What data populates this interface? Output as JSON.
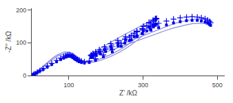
{
  "chart_data": {
    "type": "line",
    "xlabel": "Z’ /kΩ",
    "ylabel": "-Z’’ /kΩ",
    "xlim": [
      0,
      520
    ],
    "ylim": [
      0,
      205
    ],
    "xticks": [
      100,
      300,
      500
    ],
    "yticks": [
      0,
      100,
      200
    ],
    "grid": false,
    "series": [
      {
        "type": "line",
        "line_style": "solid",
        "color": "#8888dd",
        "x": [
          1,
          3,
          5,
          8,
          12,
          17,
          23,
          30,
          38,
          47,
          57,
          66,
          75,
          83,
          89,
          94,
          98,
          102,
          107,
          112,
          117,
          122,
          126,
          129,
          133,
          140,
          152,
          168,
          188,
          213,
          240,
          265,
          285,
          303,
          318,
          328,
          334,
          337,
          337,
          334,
          329,
          321,
          311,
          299,
          285,
          269,
          252,
          234,
          216,
          200,
          187,
          177,
          170,
          165,
          163,
          164,
          168,
          175,
          185,
          198,
          215,
          234,
          255,
          277,
          299,
          321,
          342,
          363,
          383,
          402,
          419,
          434,
          447,
          458,
          467,
          474,
          479,
          483
        ],
        "values": [
          0,
          2,
          4,
          7,
          11,
          16,
          22,
          29,
          37,
          46,
          54,
          61,
          66,
          70,
          72,
          72,
          71,
          69,
          66,
          63,
          60,
          57,
          54,
          51,
          48,
          45,
          43,
          45,
          52,
          64,
          80,
          99,
          118,
          136,
          151,
          162,
          169,
          173,
          174,
          173,
          170,
          166,
          161,
          154,
          146,
          137,
          126,
          115,
          104,
          93,
          84,
          77,
          71,
          67,
          65,
          64,
          65,
          67,
          71,
          77,
          84,
          92,
          101,
          111,
          121,
          131,
          141,
          150,
          158,
          164,
          168,
          171,
          172,
          172,
          170,
          167,
          164,
          160
        ]
      },
      {
        "type": "line",
        "line_style": "solid",
        "color": "#8888dd",
        "x": [
          1,
          3,
          5,
          8,
          12,
          17,
          23,
          30,
          38,
          47,
          57,
          66,
          75,
          83,
          89,
          94,
          98,
          102,
          107,
          112,
          117,
          122,
          126,
          129,
          133,
          140,
          152,
          168,
          188,
          213,
          240,
          265,
          285,
          303,
          318,
          328,
          334,
          337,
          337,
          334,
          329,
          321,
          311,
          299,
          285,
          269,
          252,
          234,
          216,
          200,
          187,
          177,
          170,
          165,
          163,
          164,
          168,
          175,
          185,
          198,
          215,
          234,
          255,
          277,
          299,
          321,
          342,
          363,
          383,
          402,
          419,
          434,
          447,
          458,
          467,
          474,
          479,
          483
        ],
        "values": [
          0,
          2,
          4,
          7,
          11,
          15,
          21,
          27,
          34,
          42,
          50,
          57,
          62,
          65,
          67,
          67,
          66,
          64,
          61,
          58,
          55,
          52,
          49,
          46,
          44,
          41,
          39,
          41,
          47,
          58,
          73,
          91,
          108,
          125,
          139,
          149,
          156,
          159,
          160,
          159,
          156,
          152,
          146,
          140,
          132,
          123,
          113,
          103,
          93,
          84,
          76,
          70,
          65,
          61,
          59,
          59,
          60,
          62,
          66,
          71,
          78,
          86,
          94,
          103,
          112,
          121,
          130,
          138,
          145,
          151,
          155,
          158,
          159,
          159,
          158,
          155,
          152,
          149
        ]
      },
      {
        "type": "scatter",
        "marker": "plus",
        "color": "#0000ee",
        "x": [
          2,
          5,
          9,
          15,
          22,
          31,
          42,
          54,
          67,
          78,
          86,
          92,
          97,
          101,
          105,
          109,
          112,
          115,
          119,
          123,
          128,
          134,
          142,
          155,
          172,
          193,
          217,
          241,
          263,
          283,
          301,
          316,
          327,
          333,
          336,
          336,
          333,
          328,
          320,
          310,
          298,
          284,
          268,
          251,
          233,
          215,
          199,
          185,
          174,
          166,
          161,
          159,
          161,
          165,
          172,
          182,
          196,
          213,
          232,
          253,
          276,
          298,
          321,
          342,
          363,
          382,
          400,
          417,
          432,
          446,
          457,
          467,
          474,
          479,
          482
        ],
        "values": [
          0,
          3,
          6,
          10,
          15,
          21,
          29,
          37,
          46,
          53,
          58,
          61,
          63,
          64,
          63,
          61,
          59,
          56,
          53,
          50,
          47,
          44,
          42,
          44,
          51,
          63,
          79,
          98,
          117,
          135,
          150,
          162,
          169,
          173,
          174,
          173,
          170,
          165,
          159,
          152,
          143,
          133,
          122,
          111,
          100,
          90,
          81,
          73,
          67,
          63,
          61,
          61,
          63,
          67,
          72,
          79,
          87,
          97,
          107,
          118,
          129,
          140,
          150,
          159,
          166,
          172,
          176,
          178,
          179,
          178,
          176,
          173,
          169,
          165,
          161
        ]
      },
      {
        "type": "scatter",
        "marker": "square",
        "color": "#0000ee",
        "x": [
          2,
          5,
          9,
          15,
          22,
          31,
          42,
          54,
          67,
          78,
          86,
          92,
          97,
          101,
          105,
          109,
          112,
          115,
          119,
          123,
          128,
          134,
          142,
          155,
          172,
          193,
          217,
          241,
          263,
          283,
          301,
          316,
          327,
          333,
          336,
          336,
          333,
          328,
          320,
          310,
          298,
          284,
          268,
          251,
          233,
          215,
          199,
          185,
          174,
          166,
          161,
          159,
          161,
          165,
          172,
          182,
          196,
          213,
          232,
          253,
          276,
          298,
          321,
          342,
          363,
          382,
          400,
          417,
          432,
          446,
          457,
          467,
          474,
          479,
          482
        ],
        "values": [
          0,
          3,
          5,
          9,
          14,
          19,
          26,
          34,
          42,
          49,
          53,
          56,
          58,
          59,
          58,
          56,
          54,
          51,
          48,
          45,
          42,
          40,
          38,
          40,
          46,
          57,
          72,
          89,
          106,
          122,
          136,
          147,
          153,
          157,
          157,
          156,
          153,
          148,
          142,
          136,
          128,
          119,
          109,
          99,
          90,
          81,
          73,
          66,
          61,
          57,
          55,
          55,
          57,
          60,
          65,
          72,
          79,
          88,
          97,
          108,
          118,
          128,
          138,
          146,
          154,
          160,
          164,
          167,
          168,
          168,
          166,
          163,
          160,
          156,
          153
        ]
      }
    ]
  }
}
